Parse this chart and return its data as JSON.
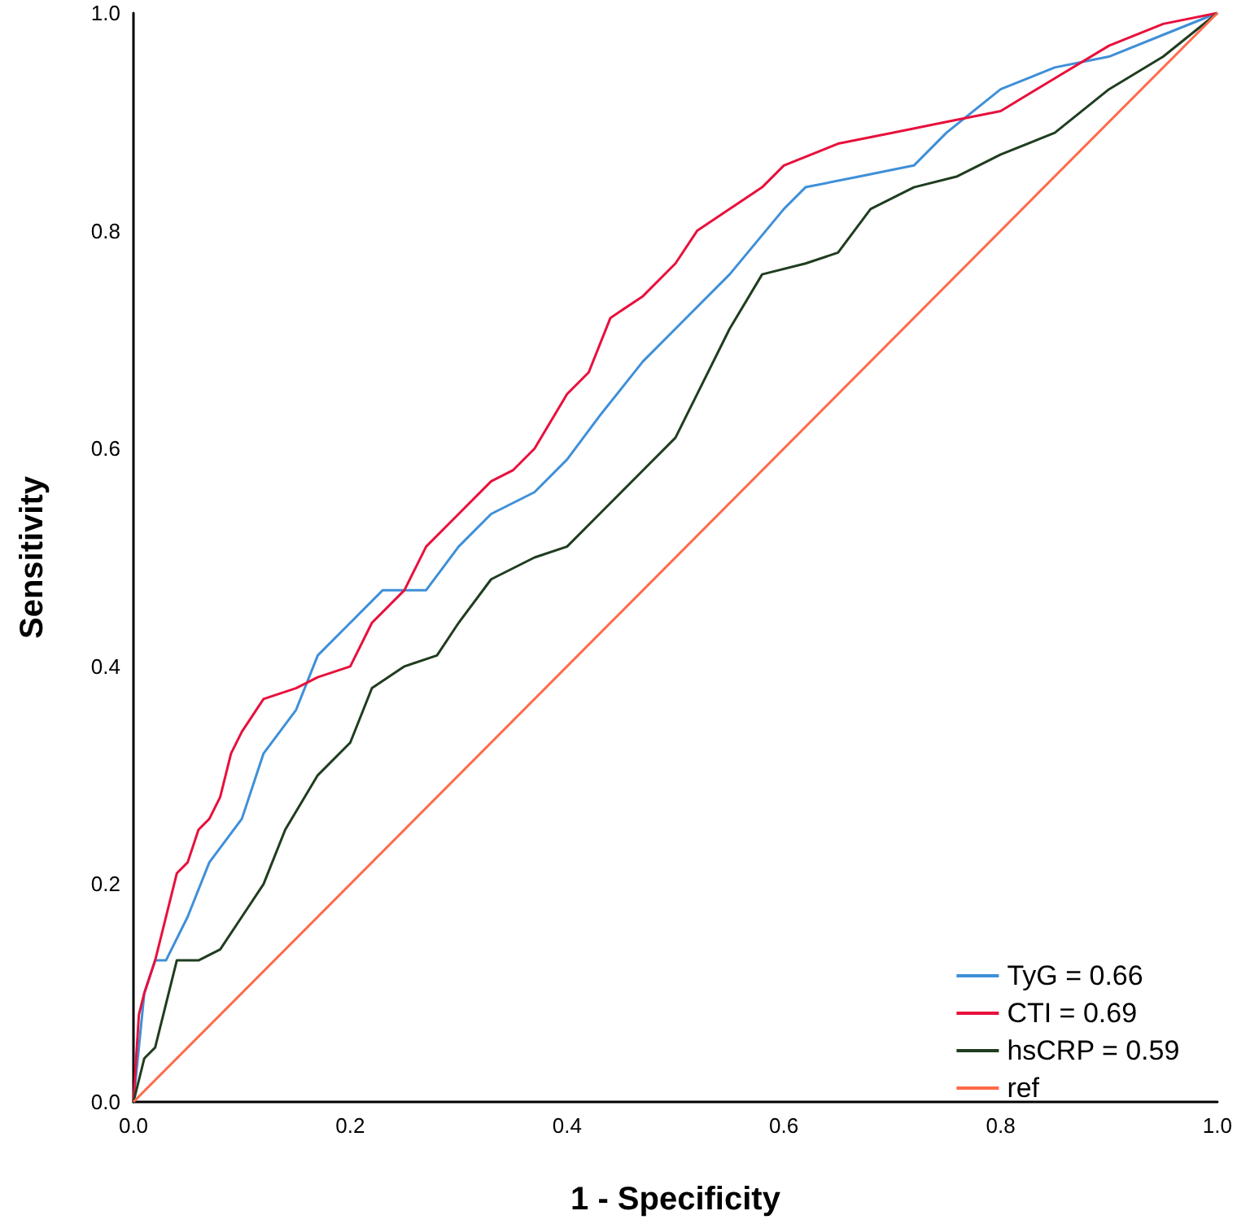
{
  "chart_data": {
    "type": "line",
    "xlabel": "1 - Specificity",
    "ylabel": "Sensitivity",
    "xlim": [
      0,
      1
    ],
    "ylim": [
      0,
      1
    ],
    "xticks": [
      {
        "value": 0,
        "label": "0.0"
      },
      {
        "value": 0.2,
        "label": "0.2"
      },
      {
        "value": 0.4,
        "label": "0.4"
      },
      {
        "value": 0.6,
        "label": "0.6"
      },
      {
        "value": 0.8,
        "label": "0.8"
      },
      {
        "value": 1,
        "label": "1.0"
      }
    ],
    "yticks": [
      {
        "value": 0,
        "label": "0.0"
      },
      {
        "value": 0.2,
        "label": "0.2"
      },
      {
        "value": 0.4,
        "label": "0.4"
      },
      {
        "value": 0.6,
        "label": "0.6"
      },
      {
        "value": 0.8,
        "label": "0.8"
      },
      {
        "value": 1,
        "label": "1.0"
      }
    ],
    "grid": false,
    "legend": "bottom right",
    "marker": "none",
    "line_style": "solid",
    "series": [
      {
        "name": "TyG = 0.66",
        "color": "#3f8fd8",
        "x": [
          0,
          0.01,
          0.02,
          0.03,
          0.05,
          0.07,
          0.1,
          0.12,
          0.15,
          0.17,
          0.2,
          0.23,
          0.27,
          0.3,
          0.33,
          0.37,
          0.4,
          0.43,
          0.47,
          0.5,
          0.55,
          0.6,
          0.62,
          0.67,
          0.72,
          0.75,
          0.8,
          0.85,
          0.9,
          0.95,
          1
        ],
        "values": [
          0,
          0.1,
          0.13,
          0.13,
          0.17,
          0.22,
          0.26,
          0.32,
          0.36,
          0.41,
          0.44,
          0.47,
          0.47,
          0.51,
          0.54,
          0.56,
          0.59,
          0.63,
          0.68,
          0.71,
          0.76,
          0.82,
          0.84,
          0.85,
          0.86,
          0.89,
          0.93,
          0.95,
          0.96,
          0.98,
          1
        ]
      },
      {
        "name": "CTI = 0.69",
        "color": "#e8103c",
        "x": [
          0,
          0.005,
          0.01,
          0.02,
          0.03,
          0.04,
          0.05,
          0.06,
          0.07,
          0.08,
          0.09,
          0.1,
          0.12,
          0.15,
          0.17,
          0.2,
          0.22,
          0.25,
          0.27,
          0.3,
          0.33,
          0.35,
          0.37,
          0.4,
          0.42,
          0.44,
          0.47,
          0.5,
          0.52,
          0.55,
          0.58,
          0.6,
          0.65,
          0.7,
          0.75,
          0.8,
          0.85,
          0.9,
          0.95,
          1
        ],
        "values": [
          0,
          0.08,
          0.1,
          0.13,
          0.17,
          0.21,
          0.22,
          0.25,
          0.26,
          0.28,
          0.32,
          0.34,
          0.37,
          0.38,
          0.39,
          0.4,
          0.44,
          0.47,
          0.51,
          0.54,
          0.57,
          0.58,
          0.6,
          0.65,
          0.67,
          0.72,
          0.74,
          0.77,
          0.8,
          0.82,
          0.84,
          0.86,
          0.88,
          0.89,
          0.9,
          0.91,
          0.94,
          0.97,
          0.99,
          1
        ]
      },
      {
        "name": "hsCRP = 0.59",
        "color": "#1f3d1f",
        "x": [
          0,
          0.005,
          0.01,
          0.02,
          0.03,
          0.04,
          0.06,
          0.08,
          0.1,
          0.12,
          0.14,
          0.17,
          0.2,
          0.22,
          0.25,
          0.28,
          0.3,
          0.33,
          0.37,
          0.4,
          0.43,
          0.47,
          0.5,
          0.52,
          0.55,
          0.58,
          0.62,
          0.65,
          0.68,
          0.72,
          0.76,
          0.8,
          0.85,
          0.9,
          0.95,
          1
        ],
        "values": [
          0,
          0.02,
          0.04,
          0.05,
          0.09,
          0.13,
          0.13,
          0.14,
          0.17,
          0.2,
          0.25,
          0.3,
          0.33,
          0.38,
          0.4,
          0.41,
          0.44,
          0.48,
          0.5,
          0.51,
          0.54,
          0.58,
          0.61,
          0.65,
          0.71,
          0.76,
          0.77,
          0.78,
          0.82,
          0.84,
          0.85,
          0.87,
          0.89,
          0.93,
          0.96,
          1
        ]
      },
      {
        "name": "ref",
        "color": "#ff6a4a",
        "x": [
          0,
          1
        ],
        "values": [
          0,
          1
        ]
      }
    ]
  }
}
